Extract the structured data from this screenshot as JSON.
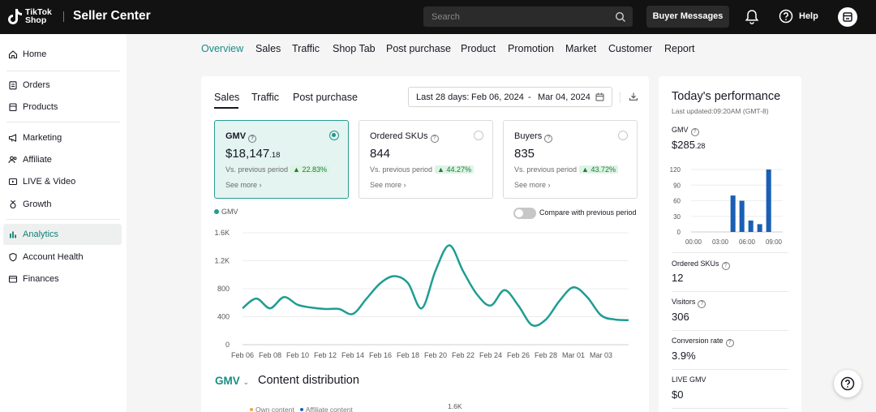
{
  "topbar": {
    "logo_line1": "TikTok",
    "logo_line2": "Shop",
    "app_title": "Seller Center",
    "search_placeholder": "Search",
    "buyer_messages": "Buyer Messages",
    "help": "Help"
  },
  "sidebar": {
    "items": [
      {
        "label": "Home",
        "icon": "home-icon"
      },
      {
        "label": "Orders",
        "icon": "clipboard-icon"
      },
      {
        "label": "Products",
        "icon": "box-icon"
      },
      {
        "label": "Marketing",
        "icon": "megaphone-icon"
      },
      {
        "label": "Affiliate",
        "icon": "users-icon"
      },
      {
        "label": "LIVE & Video",
        "icon": "video-icon"
      },
      {
        "label": "Growth",
        "icon": "sprout-icon"
      },
      {
        "label": "Analytics",
        "icon": "bar-chart-icon"
      },
      {
        "label": "Account Health",
        "icon": "shield-icon"
      },
      {
        "label": "Finances",
        "icon": "wallet-icon"
      }
    ],
    "active": "Analytics"
  },
  "nav": {
    "tabs": [
      "Overview",
      "Sales",
      "Traffic",
      "Shop Tab",
      "Post purchase",
      "Product",
      "Promotion",
      "Market",
      "Customer",
      "Report"
    ],
    "active": "Overview"
  },
  "main": {
    "sub_tabs": [
      "Sales",
      "Traffic",
      "Post purchase"
    ],
    "date": {
      "range_label": "Last 28 days:",
      "start": "Feb 06, 2024",
      "sep": "-",
      "end": "Mar 04, 2024"
    },
    "metrics": [
      {
        "title": "GMV",
        "value": "$18,147",
        "value_decimal": ".18",
        "vs_label": "Vs. previous period",
        "change": "22.83%",
        "more": "See more",
        "selected": true
      },
      {
        "title": "Ordered SKUs",
        "value": "844",
        "value_decimal": "",
        "vs_label": "Vs. previous period",
        "change": "44.27%",
        "more": "See more",
        "selected": false
      },
      {
        "title": "Buyers",
        "value": "835",
        "value_decimal": "",
        "vs_label": "Vs. previous period",
        "change": "43.72%",
        "more": "See more",
        "selected": false
      }
    ],
    "legend_label": "GMV",
    "compare_label": "Compare with previous period",
    "content_section": {
      "selector": "GMV",
      "title": "Content distribution",
      "legend": [
        "Own content",
        "Affiliate content"
      ],
      "top_tick": "1.6K"
    }
  },
  "chart_data": {
    "type": "line",
    "series": [
      {
        "name": "GMV",
        "values": [
          520,
          660,
          520,
          680,
          570,
          530,
          510,
          510,
          440,
          660,
          880,
          980,
          880,
          520,
          1060,
          1420,
          1050,
          720,
          560,
          780,
          560,
          280,
          360,
          630,
          820,
          680,
          420,
          360,
          350
        ]
      }
    ],
    "x_tick_labels": [
      "Feb 06",
      "Feb 08",
      "Feb 10",
      "Feb 12",
      "Feb 14",
      "Feb 16",
      "Feb 18",
      "Feb 20",
      "Feb 22",
      "Feb 24",
      "Feb 26",
      "Feb 28",
      "Mar 01",
      "Mar 03"
    ],
    "y_tick_labels": [
      "0",
      "400",
      "800",
      "1.2K",
      "1.6K"
    ],
    "ylim": [
      0,
      1600
    ],
    "grid": true,
    "color": "#1f9d92"
  },
  "panel": {
    "title": "Today's performance",
    "updated": "Last updated:09:20AM (GMT-8)",
    "gmv_label": "GMV",
    "gmv_value": "$285",
    "gmv_decimal": ".28",
    "mini_chart": {
      "type": "bar",
      "y_tick_labels": [
        "0",
        "30",
        "60",
        "90",
        "120"
      ],
      "x_tick_labels": [
        "00:00",
        "03:00",
        "06:00",
        "09:00"
      ],
      "bars": [
        {
          "hour": 4,
          "value": 70
        },
        {
          "hour": 5,
          "value": 60
        },
        {
          "hour": 6,
          "value": 22
        },
        {
          "hour": 7,
          "value": 15
        },
        {
          "hour": 8,
          "value": 120
        }
      ],
      "ylim": [
        0,
        120
      ],
      "color": "#1a5fb4"
    },
    "stats": [
      {
        "label": "Ordered SKUs",
        "value": "12",
        "help": true
      },
      {
        "label": "Visitors",
        "value": "306",
        "help": true
      },
      {
        "label": "Conversion rate",
        "value": "3.9%",
        "help": true
      },
      {
        "label": "LIVE GMV",
        "value": "$0",
        "help": false
      }
    ]
  }
}
